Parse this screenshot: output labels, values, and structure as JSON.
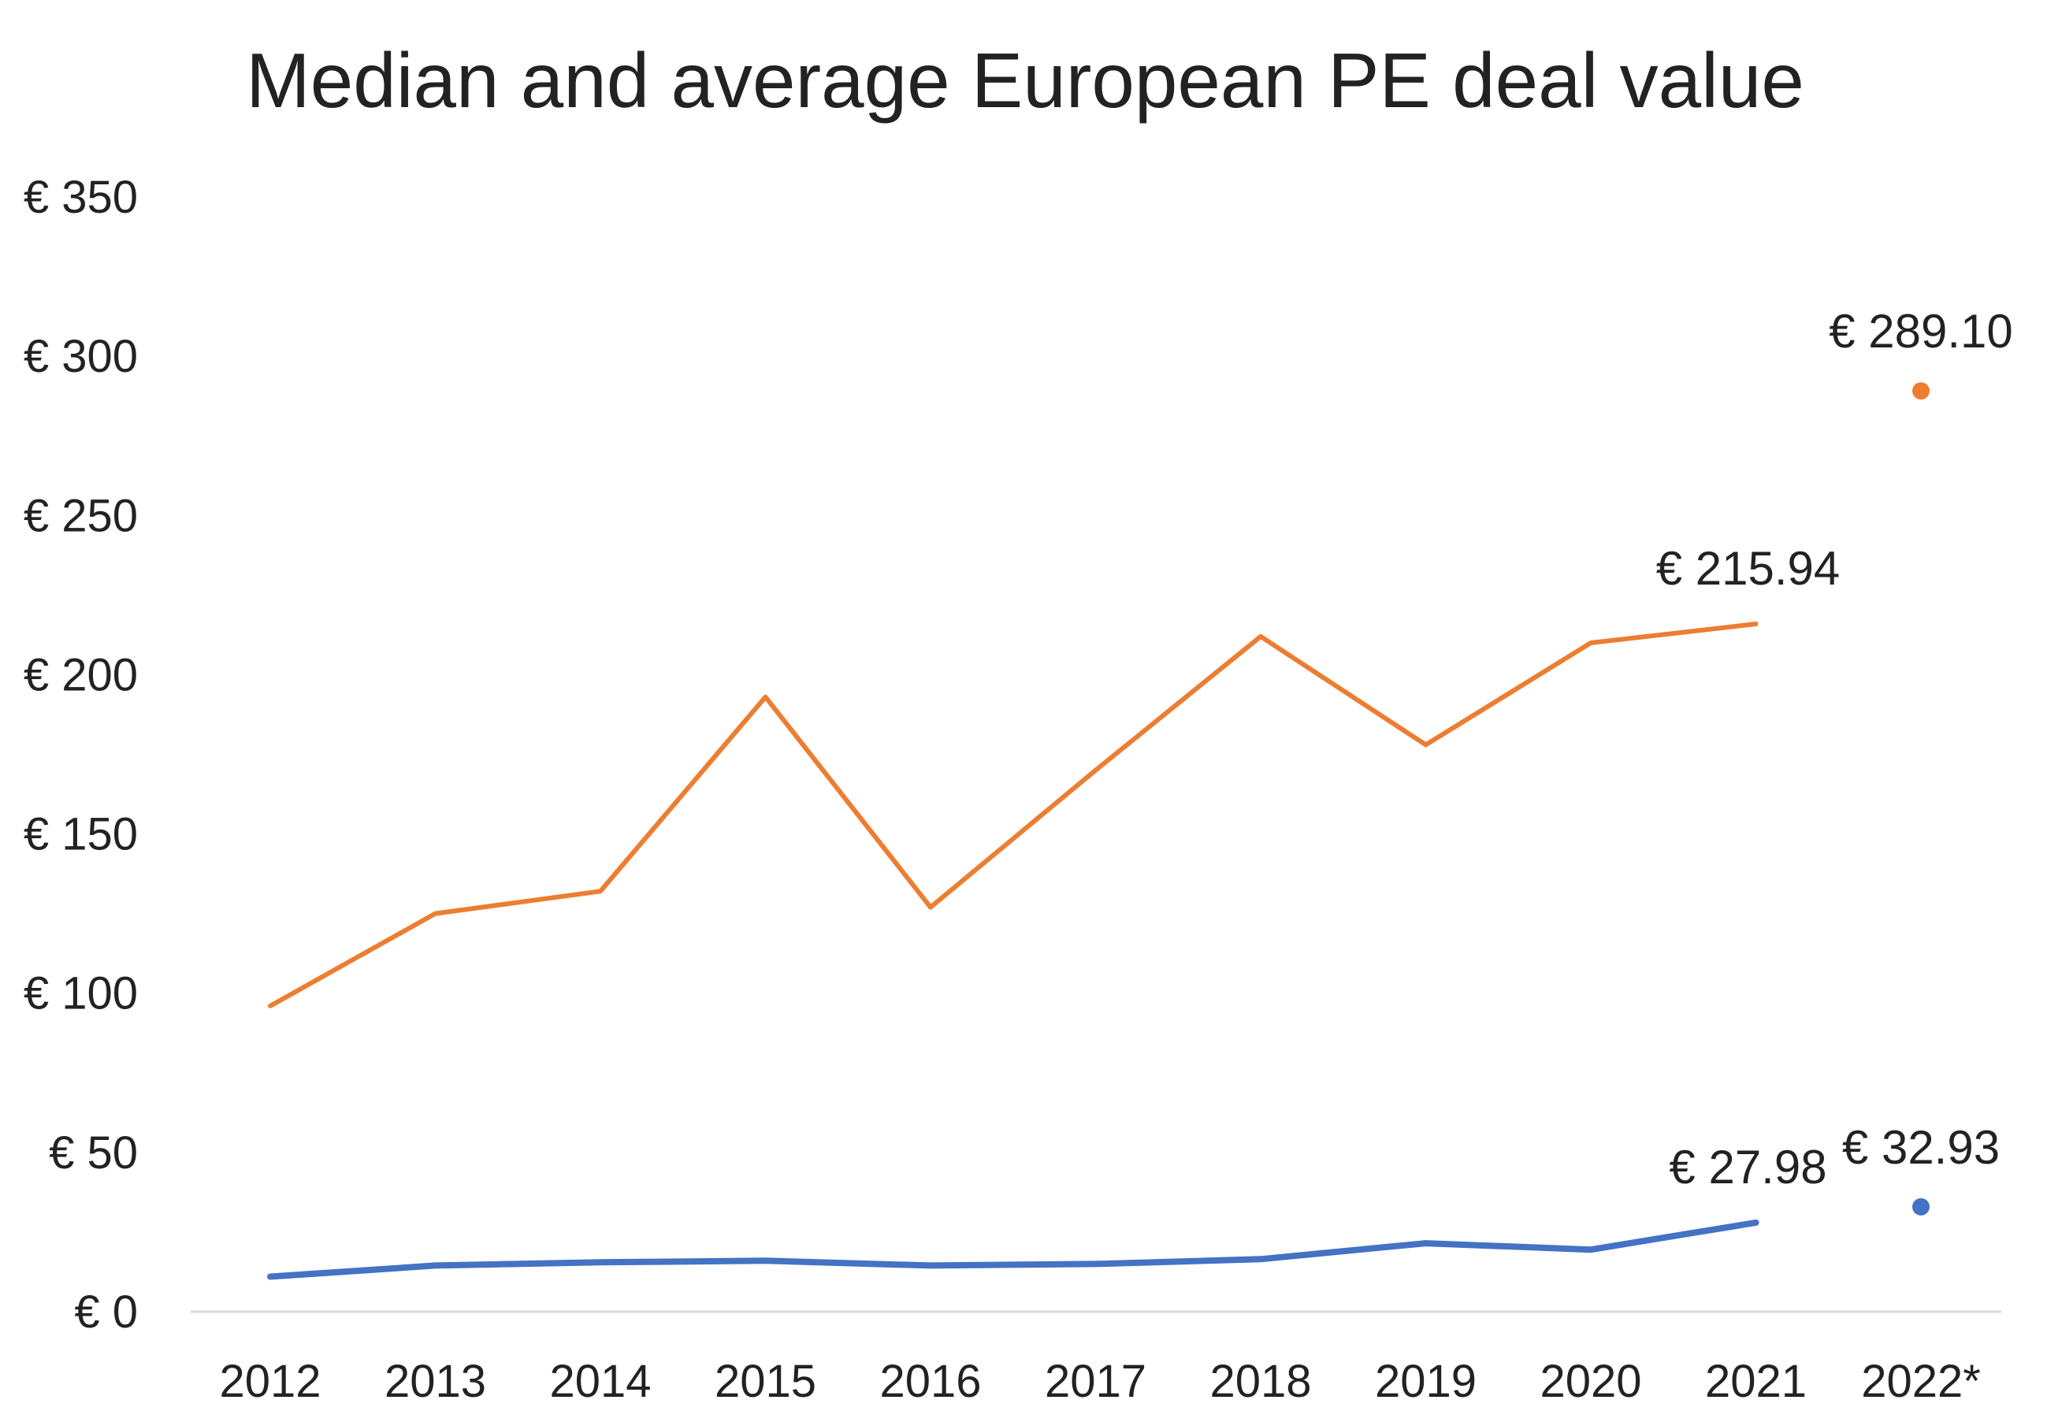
{
  "chart_data": {
    "type": "line",
    "title": "Median and average European PE deal value",
    "xlabel": "",
    "ylabel": "",
    "categories": [
      "2012",
      "2013",
      "2014",
      "2015",
      "2016",
      "2017",
      "2018",
      "2019",
      "2020",
      "2021",
      "2022*"
    ],
    "ylim": [
      0,
      350
    ],
    "ytick_values": [
      0,
      50,
      100,
      150,
      200,
      250,
      300,
      350
    ],
    "ytick_labels": [
      "€ 0",
      "€ 50",
      "€ 100",
      "€ 150",
      "€ 200",
      "€ 250",
      "€ 300",
      "€ 350"
    ],
    "grid": false,
    "legend": "none",
    "series": [
      {
        "color": "#ED7D31",
        "values": [
          96,
          125,
          132,
          193,
          127,
          170,
          212,
          178,
          210,
          215.94,
          289.1
        ],
        "line_through_index": 9,
        "marker_indices": [
          10
        ],
        "data_labels": [
          {
            "index": 9,
            "text": "€ 215.94"
          },
          {
            "index": 10,
            "text": "€ 289.10"
          }
        ]
      },
      {
        "color": "#4472C4",
        "values": [
          11,
          14.5,
          15.5,
          16,
          14.5,
          15,
          16.5,
          21.5,
          19.5,
          27.98,
          32.93
        ],
        "line_through_index": 9,
        "marker_indices": [
          10
        ],
        "data_labels": [
          {
            "index": 9,
            "text": "€ 27.98"
          },
          {
            "index": 10,
            "text": "€ 32.93"
          }
        ]
      }
    ]
  }
}
